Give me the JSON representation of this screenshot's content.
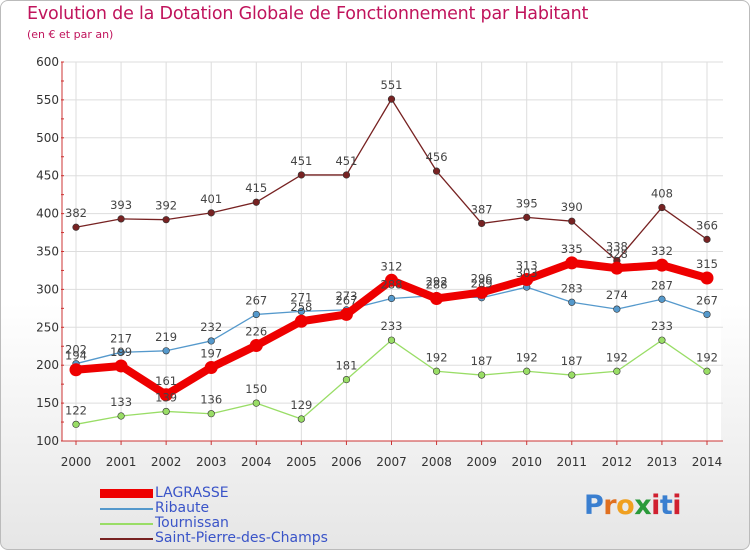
{
  "header": {
    "title": "Evolution de la Dotation Globale de Fonctionnement par Habitant",
    "subtitle": "(en € et par an)"
  },
  "logo": {
    "letters": [
      "P",
      "r",
      "o",
      "x",
      "i",
      "t",
      "i"
    ],
    "colors": [
      "#3a7fd0",
      "#e07020",
      "#f0a020",
      "#2a9a3a",
      "#d02030",
      "#3a7fd0",
      "#d02030"
    ]
  },
  "chart_data": {
    "type": "line",
    "title": "Evolution de la Dotation Globale de Fonctionnement par Habitant",
    "subtitle": "(en € et par an)",
    "x": [
      2000,
      2001,
      2002,
      2003,
      2004,
      2005,
      2006,
      2007,
      2008,
      2009,
      2010,
      2011,
      2012,
      2013,
      2014
    ],
    "ylim": [
      100,
      600
    ],
    "yticks": [
      100,
      150,
      200,
      250,
      300,
      350,
      400,
      450,
      500,
      550,
      600
    ],
    "grid": true,
    "legend_position": "bottom-left",
    "series": [
      {
        "name": "LAGRASSE",
        "color": "#ee0000",
        "values": [
          194,
          199,
          161,
          197,
          226,
          258,
          267,
          312,
          288,
          296,
          313,
          335,
          328,
          332,
          315
        ],
        "width": "thick"
      },
      {
        "name": "Ribaute",
        "color": "#5599cc",
        "values": [
          202,
          217,
          219,
          232,
          267,
          271,
          273,
          288,
          292,
          289,
          303,
          283,
          274,
          287,
          267
        ],
        "width": "thin"
      },
      {
        "name": "Tournissan",
        "color": "#99dd66",
        "values": [
          122,
          133,
          139,
          136,
          150,
          129,
          181,
          233,
          192,
          187,
          192,
          187,
          192,
          233,
          192
        ],
        "width": "thin"
      },
      {
        "name": "Saint-Pierre-des-Champs",
        "color": "#772222",
        "values": [
          382,
          393,
          392,
          401,
          415,
          451,
          451,
          551,
          456,
          387,
          395,
          390,
          338,
          408,
          366
        ],
        "width": "thin"
      }
    ]
  }
}
